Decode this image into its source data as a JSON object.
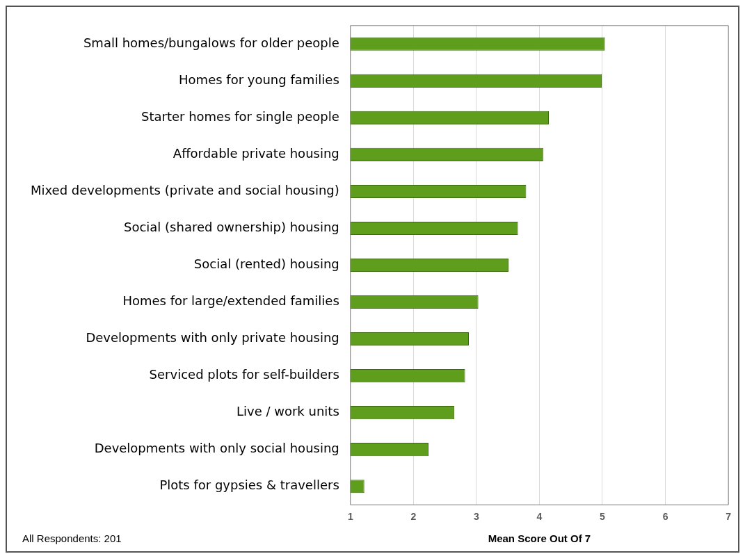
{
  "chart_data": {
    "type": "bar",
    "orientation": "horizontal",
    "categories": [
      "Small homes/bungalows for older people",
      "Homes for young families",
      "Starter homes for single people",
      "Affordable private housing",
      "Mixed developments (private and social housing)",
      "Social (shared ownership) housing",
      "Social (rented) housing",
      "Homes for large/extended families",
      "Developments with only private housing",
      "Serviced plots for self-builders",
      "Live / work units",
      "Developments with only social housing",
      "Plots for gypsies & travellers"
    ],
    "values": [
      5.04,
      4.99,
      4.15,
      4.06,
      3.79,
      3.66,
      3.51,
      3.03,
      2.88,
      2.82,
      2.65,
      2.24,
      1.22
    ],
    "color": "#5f9e1c",
    "xlabel": "Mean Score Out Of 7",
    "xlim": [
      1,
      7
    ],
    "xticks": [
      1,
      2,
      3,
      4,
      5,
      6,
      7
    ],
    "grid": "x",
    "legend": false,
    "annotations": [
      "All Respondents: 201"
    ]
  }
}
